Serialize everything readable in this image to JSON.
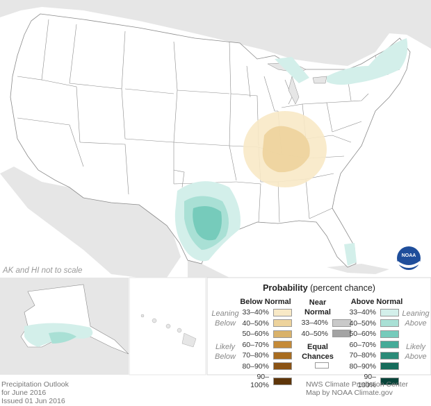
{
  "note_scale": "AK and HI not to scale",
  "legend": {
    "title_bold": "Probability",
    "title_rest": " (percent chance)",
    "below_head": "Below Normal",
    "near_head_1": "Near",
    "near_head_2": "Normal",
    "above_head": "Above Normal",
    "equal_1": "Equal",
    "equal_2": "Chances",
    "leaning_below_1": "Leaning",
    "leaning_below_2": "Below",
    "likely_below_1": "Likely",
    "likely_below_2": "Below",
    "leaning_above_1": "Leaning",
    "leaning_above_2": "Above",
    "likely_above_1": "Likely",
    "likely_above_2": "Above",
    "below_rows": [
      {
        "label": "33–40%",
        "color": "#f8e9c6"
      },
      {
        "label": "40–50%",
        "color": "#edd39c"
      },
      {
        "label": "50–60%",
        "color": "#d9b26a"
      },
      {
        "label": "60–70%",
        "color": "#c48a38"
      },
      {
        "label": "70–80%",
        "color": "#a86c1f"
      },
      {
        "label": "80–90%",
        "color": "#8a5214"
      },
      {
        "label": "90–100%",
        "color": "#5e3509"
      }
    ],
    "near_rows": [
      {
        "label": "33–40%",
        "color": "#c9c9c9"
      },
      {
        "label": "40–50%",
        "color": "#a3a3a3"
      }
    ],
    "above_rows": [
      {
        "label": "33–40%",
        "color": "#d3efea"
      },
      {
        "label": "40–50%",
        "color": "#a9e0d5"
      },
      {
        "label": "50–60%",
        "color": "#76cbbb"
      },
      {
        "label": "60–70%",
        "color": "#45ab98"
      },
      {
        "label": "70–80%",
        "color": "#2b8b78"
      },
      {
        "label": "80–90%",
        "color": "#156b5a"
      },
      {
        "label": "90–100%",
        "color": "#08443a"
      }
    ]
  },
  "captions": {
    "left_1": "Precipitation Outlook",
    "left_2": "for June 2016",
    "left_3": "Issued 01 Jun 2016",
    "right_1": "NWS Climate Prediction Center",
    "right_2": "Map by NOAA Climate.gov"
  },
  "logo_text": "NOAA",
  "colors": {
    "land": "#ffffff",
    "background_land": "#e6e6e6",
    "state_border": "#8a8a8a",
    "below_normal_light": "#f8e9c6",
    "below_normal_mid": "#edd39c",
    "above_normal_light": "#d3efea",
    "above_normal_mid": "#a9e0d5",
    "above_normal_dark": "#76cbbb"
  }
}
